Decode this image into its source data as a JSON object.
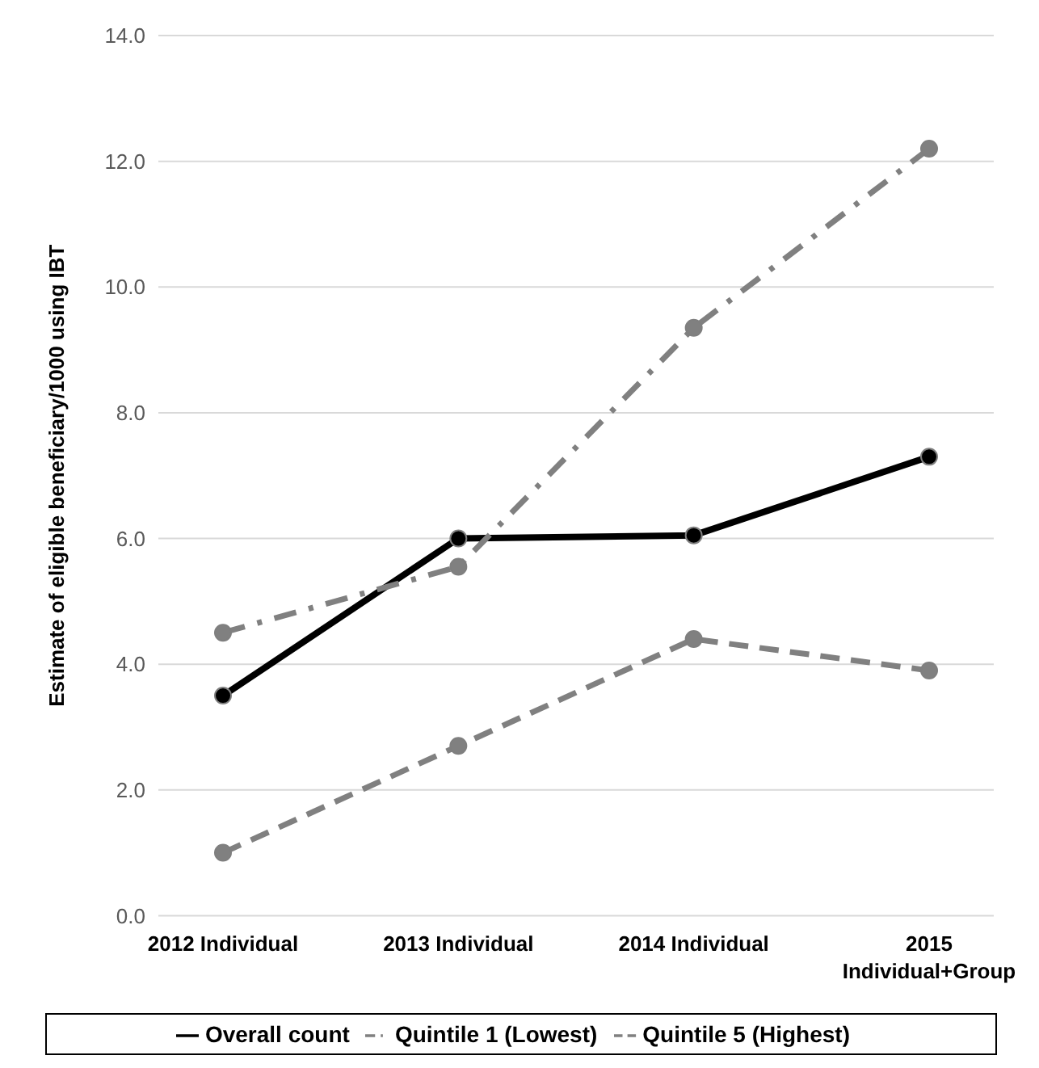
{
  "chart_data": {
    "type": "line",
    "ylabel": "Estimate of eligible beneficiary/1000 using IBT",
    "categories": [
      "2012 Individual",
      "2013 Individual",
      "2014 Individual",
      "2015 Individual+Group"
    ],
    "series": [
      {
        "name": "Overall count",
        "color": "#000000",
        "line_style": "solid",
        "values": [
          3.5,
          6.0,
          6.05,
          7.3
        ]
      },
      {
        "name": "Quintile 1 (Lowest)",
        "color": "#808080",
        "line_style": "dashdot",
        "values": [
          4.5,
          5.55,
          9.35,
          12.2
        ]
      },
      {
        "name": "Quintile 5 (Highest)",
        "color": "#808080",
        "line_style": "dashed",
        "values": [
          1.0,
          2.7,
          4.4,
          3.9
        ]
      }
    ],
    "ylim": [
      0,
      14
    ],
    "yticks": [
      {
        "value": 0,
        "label": "0.0"
      },
      {
        "value": 2,
        "label": "2.0"
      },
      {
        "value": 4,
        "label": "4.0"
      },
      {
        "value": 6,
        "label": "6.0"
      },
      {
        "value": 8,
        "label": "8.0"
      },
      {
        "value": 10,
        "label": "10.0"
      },
      {
        "value": 12,
        "label": "12.0"
      },
      {
        "value": 14,
        "label": "14.0"
      }
    ],
    "grid": "y",
    "legend": "bottom",
    "marker": "circle"
  }
}
